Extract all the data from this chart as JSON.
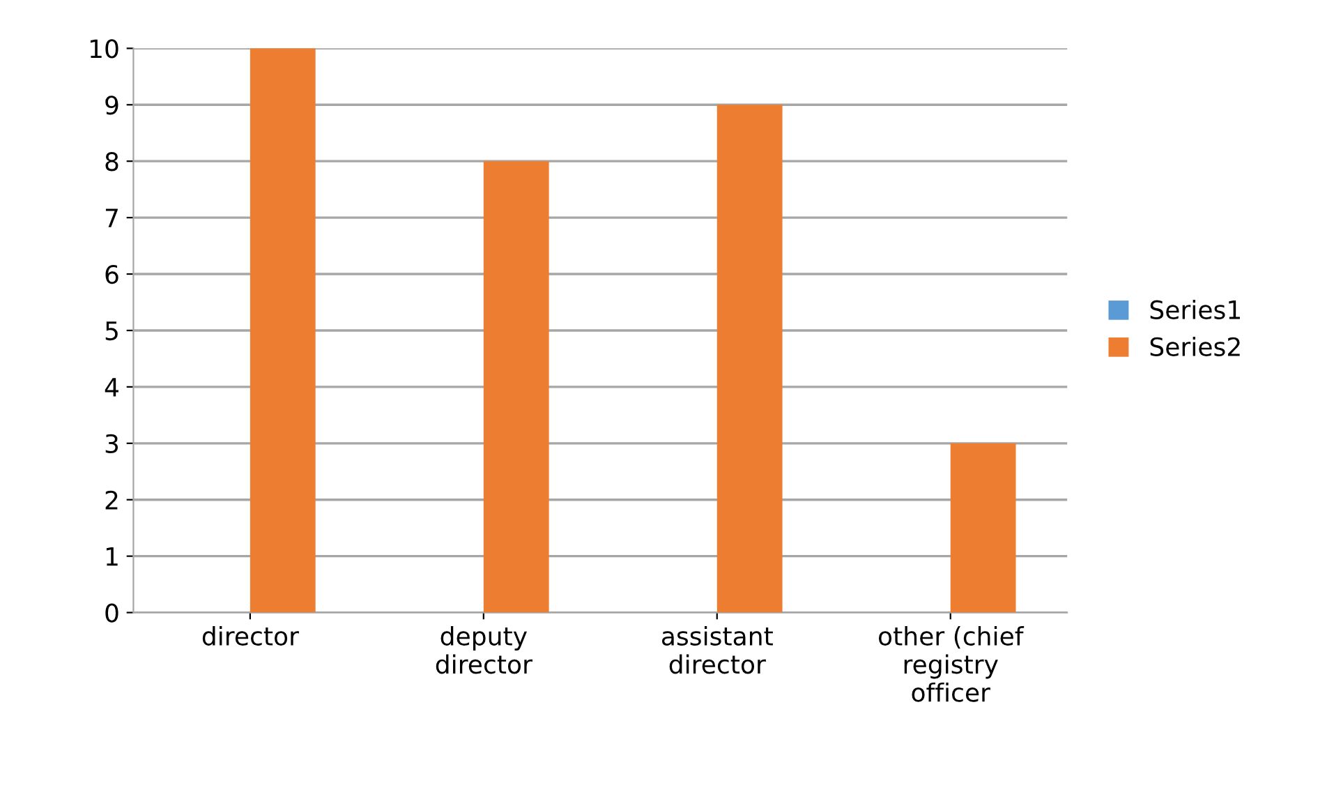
{
  "chart_data": {
    "type": "bar",
    "categories": [
      "director",
      "deputy\ndirector",
      "assistant\ndirector",
      "other (chief\nregistry\nofficer"
    ],
    "series": [
      {
        "name": "Series1",
        "color": "#5b9bd5",
        "values": [
          null,
          null,
          null,
          null
        ]
      },
      {
        "name": "Series2",
        "color": "#ed7d31",
        "values": [
          10,
          8,
          9,
          3
        ]
      }
    ],
    "ylim": [
      0,
      10
    ],
    "yticks": [
      0,
      1,
      2,
      3,
      4,
      5,
      6,
      7,
      8,
      9,
      10
    ],
    "grid": "y",
    "legend": "right"
  }
}
